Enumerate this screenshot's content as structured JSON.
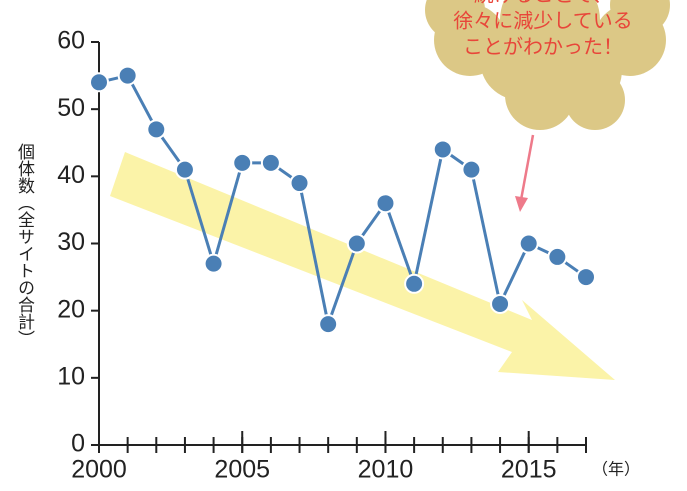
{
  "chart_data": {
    "type": "line",
    "y_label": "個体数（全サイトの合計）",
    "x_unit": "（年）",
    "annotation": [
      "続けることで、",
      "徐々に減少している",
      "ことがわかった！"
    ],
    "x": [
      2000,
      2001,
      2002,
      2003,
      2004,
      2005,
      2006,
      2007,
      2008,
      2009,
      2010,
      2011,
      2012,
      2013,
      2014,
      2015,
      2016,
      2017
    ],
    "series": [
      {
        "color": "#4a7fb5",
        "values": [
          54,
          55,
          47,
          41,
          27,
          42,
          42,
          39,
          18,
          30,
          36,
          24,
          44,
          41,
          21,
          30,
          28,
          25
        ]
      }
    ],
    "xlim": [
      2000,
      2017
    ],
    "xticks": [
      2000,
      2005,
      2010,
      2015
    ],
    "ylim": [
      0,
      60
    ],
    "yticks": [
      0,
      10,
      20,
      30,
      40,
      50,
      60
    ]
  }
}
